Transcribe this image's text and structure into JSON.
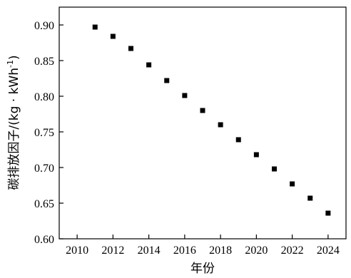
{
  "chart_data": {
    "type": "scatter",
    "title": "",
    "xlabel": "年份",
    "ylabel": "碳排放因子/(kg · kWh",
    "ylabel_sup": "-1",
    "ylabel_tail": ")",
    "xlim": [
      2009,
      2025
    ],
    "ylim": [
      0.6,
      0.925
    ],
    "xticks": [
      2010,
      2012,
      2014,
      2016,
      2018,
      2020,
      2022,
      2024
    ],
    "yticks": [
      0.6,
      0.65,
      0.7,
      0.75,
      0.8,
      0.85,
      0.9
    ],
    "xtick_labels": [
      "2010",
      "2012",
      "2014",
      "2016",
      "2018",
      "2020",
      "2022",
      "2024"
    ],
    "ytick_labels": [
      "0.60",
      "0.65",
      "0.70",
      "0.75",
      "0.80",
      "0.85",
      "0.90"
    ],
    "grid": false,
    "marker": "square",
    "marker_color": "#000000",
    "series": [
      {
        "x": [
          2011,
          2012,
          2013,
          2014,
          2015,
          2016,
          2017,
          2018,
          2019,
          2020,
          2021,
          2022,
          2023,
          2024
        ],
        "y": [
          0.897,
          0.884,
          0.867,
          0.844,
          0.822,
          0.801,
          0.78,
          0.76,
          0.739,
          0.718,
          0.698,
          0.677,
          0.657,
          0.636
        ]
      }
    ]
  }
}
